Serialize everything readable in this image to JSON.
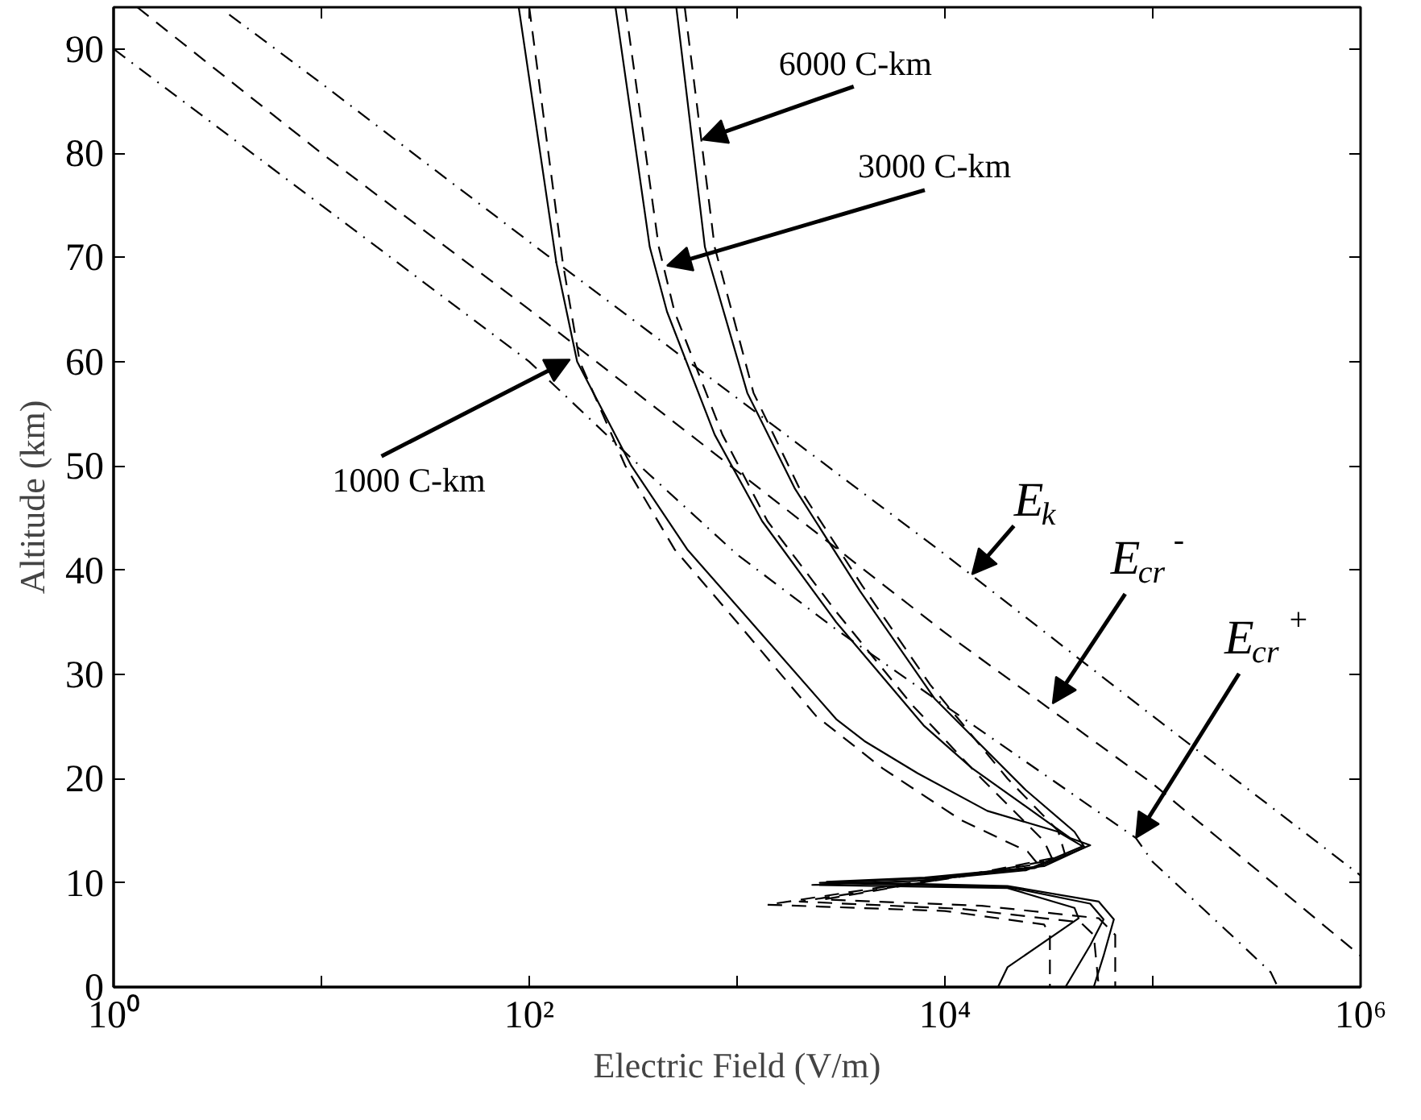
{
  "chart_data": {
    "type": "line",
    "xlabel": "Electric Field (V/m)",
    "ylabel": "Altitude (km)",
    "log": "x",
    "xlim": [
      1,
      1000000
    ],
    "ylim": [
      0,
      94
    ],
    "xticks": [
      {
        "value": 1,
        "label": "10⁰"
      },
      {
        "value": 10,
        "label": null
      },
      {
        "value": 100,
        "label": "10²"
      },
      {
        "value": 1000,
        "label": null
      },
      {
        "value": 10000,
        "label": "10⁴"
      },
      {
        "value": 100000,
        "label": null
      },
      {
        "value": 1000000,
        "label": "10⁶"
      }
    ],
    "yticks": [
      0,
      10,
      20,
      30,
      40,
      50,
      60,
      70,
      80,
      90
    ],
    "series": [
      {
        "color": "#000000",
        "line_style": "dashdot",
        "x": [
          3.6,
          10,
          100,
          1000,
          10000,
          100000,
          1000000
        ],
        "values": [
          93.3,
          86.7,
          71.5,
          56.5,
          41.5,
          26,
          10.7
        ]
      },
      {
        "color": "#000000",
        "line_style": "dashed",
        "x": [
          1.3,
          10,
          100,
          1000,
          10000,
          100000,
          1000000
        ],
        "values": [
          94,
          80,
          65,
          49.5,
          34,
          19.5,
          3
        ]
      },
      {
        "color": "#000000",
        "line_style": "dashdot",
        "x": [
          1,
          10,
          100,
          300,
          1000,
          3000,
          10000,
          83000,
          100000,
          260000,
          370000,
          400000
        ],
        "values": [
          90,
          75,
          60,
          51,
          41.5,
          34.3,
          27,
          14.3,
          12,
          4.3,
          1.4,
          0
        ]
      },
      {
        "color": "#000000",
        "line_style": "solid",
        "x": [
          89,
          135,
          170,
          310,
          575,
          1170,
          3000,
          4100,
          7400,
          16000,
          35000,
          46000,
          24500,
          7400,
          2300,
          20000,
          42000,
          44000,
          20000,
          18000
        ],
        "values": [
          94,
          69.5,
          60,
          50,
          42,
          35,
          25.7,
          23.6,
          20.5,
          16.9,
          14.9,
          13.5,
          11.2,
          10.2,
          9.8,
          9.5,
          7.6,
          6.6,
          1.9,
          0
        ]
      },
      {
        "color": "#000000",
        "line_style": "solid",
        "x": [
          260,
          380,
          460,
          780,
          1320,
          3000,
          7900,
          13500,
          40000,
          50000,
          27000,
          8000,
          2500,
          20000,
          50000,
          58000,
          50000,
          38000
        ],
        "values": [
          94,
          71,
          64.8,
          53,
          44.7,
          35,
          25.1,
          21,
          14.3,
          13.6,
          11.4,
          10.4,
          10,
          9.6,
          8,
          6.5,
          4,
          0
        ]
      },
      {
        "color": "#000000",
        "line_style": "solid",
        "x": [
          510,
          700,
          1120,
          1900,
          3900,
          8900,
          24500,
          42000,
          47000,
          30000,
          8000,
          2700,
          20000,
          55000,
          65000,
          58000,
          52000
        ],
        "values": [
          94,
          71,
          57,
          47.8,
          38,
          27.7,
          18.9,
          14.9,
          13.4,
          11.6,
          10.5,
          10.1,
          9.7,
          8.2,
          6.5,
          3,
          0
        ]
      },
      {
        "color": "#000000",
        "line_style": "dashed",
        "x": [
          100,
          145,
          175,
          290,
          500,
          1000,
          2400,
          5000,
          12000,
          25000,
          28000,
          10000,
          1400,
          10000,
          30000,
          32000,
          32000
        ],
        "values": [
          94,
          69.5,
          60,
          50,
          42,
          35,
          26,
          21,
          16,
          13,
          11.8,
          10.5,
          7.9,
          7.3,
          6,
          5,
          0
        ]
      },
      {
        "color": "#000000",
        "line_style": "dashed",
        "x": [
          290,
          420,
          500,
          850,
          1400,
          3000,
          7000,
          15000,
          30000,
          33000,
          12000,
          2000,
          12000,
          45000,
          52000,
          55000
        ],
        "values": [
          94,
          71,
          64.8,
          53,
          44.7,
          36,
          27,
          20,
          14,
          12.2,
          10.6,
          8.2,
          7.5,
          6.2,
          5,
          0
        ]
      },
      {
        "color": "#000000",
        "line_style": "dashed",
        "x": [
          560,
          780,
          1200,
          2000,
          4000,
          8500,
          20000,
          35000,
          38000,
          15000,
          2600,
          15000,
          55000,
          66000,
          66000
        ],
        "values": [
          94,
          71,
          57,
          47.8,
          38.5,
          29,
          20,
          15,
          12.6,
          11,
          8.4,
          7.8,
          6.6,
          5,
          0
        ]
      }
    ],
    "annotations": [
      {
        "text": "6000 C-km",
        "x": 680,
        "y": 81.3
      },
      {
        "text": "3000 C-km",
        "x": 460,
        "y": 69.2
      },
      {
        "text": "1000 C-km",
        "x": 157,
        "y": 60.2
      },
      {
        "text": "E$_{k}$",
        "x": 13500,
        "y": 39.6
      },
      {
        "text": "E$_{cr}$$^{-}$",
        "x": 33000,
        "y": 27.2
      },
      {
        "text": "E$_{cr}$$^{+}$",
        "x": 83000,
        "y": 14.3
      }
    ]
  }
}
